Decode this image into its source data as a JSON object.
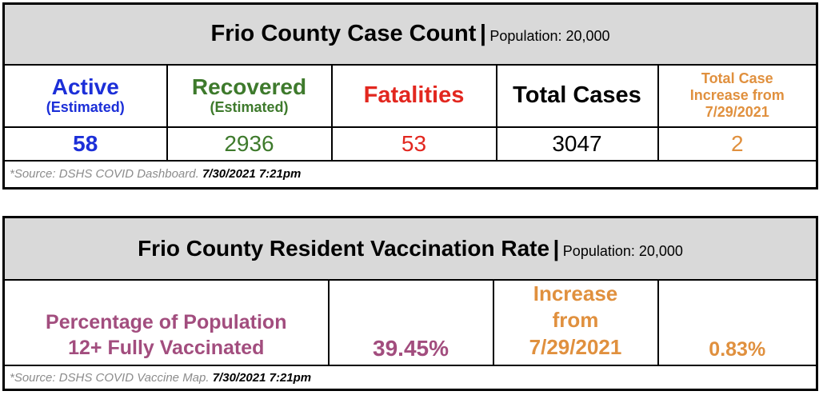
{
  "case_table": {
    "title": "Frio County Case Count",
    "separator": "|",
    "population": "Population: 20,000",
    "headers": {
      "active": "Active",
      "active_sub": "(Estimated)",
      "recovered": "Recovered",
      "recovered_sub": "(Estimated)",
      "fatalities": "Fatalities",
      "total": "Total Cases",
      "increase_line1": "Total Case",
      "increase_line2": "Increase from",
      "increase_line3": "7/29/2021"
    },
    "values": {
      "active": "58",
      "recovered": "2936",
      "fatalities": "53",
      "total": "3047",
      "increase": "2"
    },
    "source_text": "*Source: DSHS COVID Dashboard.",
    "source_date": "7/30/2021 7:21pm"
  },
  "vaccine_table": {
    "title": "Frio County Resident Vaccination Rate",
    "separator": "|",
    "population": "Population: 20,000",
    "label_line1": "Percentage of Population",
    "label_line2": "12+ Fully Vaccinated",
    "rate": "39.45%",
    "increase_line1": "Increase",
    "increase_line2": "from",
    "increase_line3": "7/29/2021",
    "increase_value": "0.83%",
    "source_text": "*Source: DSHS COVID Vaccine Map.",
    "source_date": "7/30/2021 7:21pm"
  },
  "colors": {
    "active": "#1c2fd8",
    "recovered": "#3e7a2c",
    "fatalities": "#e2271f",
    "increase": "#e0903e",
    "vaccine_label": "#a24d7e",
    "title_bg": "#d9d9d9"
  }
}
